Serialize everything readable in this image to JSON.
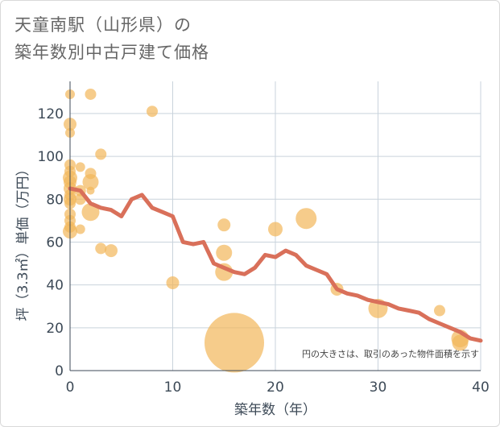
{
  "title_lines": [
    "天童南駅（山形県）の",
    "築年数別中古戸建て価格"
  ],
  "chart_data": {
    "type": "scatter",
    "title": "天童南駅（山形県）の築年数別中古戸建て価格",
    "xlabel": "築年数（年）",
    "ylabel": "坪（3.3㎡）単価（万円）",
    "xlim": [
      0,
      40
    ],
    "ylim": [
      0,
      135
    ],
    "xticks": [
      0,
      10,
      20,
      30,
      40
    ],
    "yticks": [
      0,
      20,
      40,
      60,
      80,
      100,
      120
    ],
    "grid": true,
    "note": "円の大きさは、取引のあった物件面積を示す",
    "colors": {
      "bubble": "#f2b75a",
      "line": "#d9705a"
    },
    "points": [
      {
        "x": 0,
        "y": 129,
        "s": 6
      },
      {
        "x": 0,
        "y": 115,
        "s": 8
      },
      {
        "x": 0,
        "y": 111,
        "s": 6
      },
      {
        "x": 0,
        "y": 96,
        "s": 7
      },
      {
        "x": 0,
        "y": 93,
        "s": 7
      },
      {
        "x": 0,
        "y": 90,
        "s": 9
      },
      {
        "x": 0,
        "y": 88,
        "s": 8
      },
      {
        "x": 0,
        "y": 85,
        "s": 8
      },
      {
        "x": 0,
        "y": 82,
        "s": 7
      },
      {
        "x": 0,
        "y": 80,
        "s": 8
      },
      {
        "x": 0,
        "y": 78,
        "s": 7
      },
      {
        "x": 0,
        "y": 73,
        "s": 7
      },
      {
        "x": 0,
        "y": 70,
        "s": 7
      },
      {
        "x": 0,
        "y": 67,
        "s": 7
      },
      {
        "x": 0,
        "y": 65,
        "s": 9
      },
      {
        "x": 1,
        "y": 95,
        "s": 6
      },
      {
        "x": 1,
        "y": 84,
        "s": 7
      },
      {
        "x": 1,
        "y": 80,
        "s": 7
      },
      {
        "x": 1,
        "y": 66,
        "s": 6
      },
      {
        "x": 2,
        "y": 129,
        "s": 7
      },
      {
        "x": 2,
        "y": 92,
        "s": 7
      },
      {
        "x": 2,
        "y": 88,
        "s": 10
      },
      {
        "x": 2,
        "y": 84,
        "s": 5
      },
      {
        "x": 2,
        "y": 74,
        "s": 11
      },
      {
        "x": 3,
        "y": 101,
        "s": 7
      },
      {
        "x": 3,
        "y": 57,
        "s": 7
      },
      {
        "x": 4,
        "y": 56,
        "s": 8
      },
      {
        "x": 8,
        "y": 121,
        "s": 7
      },
      {
        "x": 10,
        "y": 41,
        "s": 8
      },
      {
        "x": 15,
        "y": 68,
        "s": 8
      },
      {
        "x": 15,
        "y": 55,
        "s": 10
      },
      {
        "x": 15,
        "y": 46,
        "s": 11
      },
      {
        "x": 16,
        "y": 13,
        "s": 37
      },
      {
        "x": 20,
        "y": 66,
        "s": 9
      },
      {
        "x": 23,
        "y": 71,
        "s": 13
      },
      {
        "x": 26,
        "y": 38,
        "s": 8
      },
      {
        "x": 30,
        "y": 29,
        "s": 12
      },
      {
        "x": 36,
        "y": 28,
        "s": 7
      },
      {
        "x": 38,
        "y": 15,
        "s": 11
      },
      {
        "x": 38,
        "y": 13,
        "s": 10
      }
    ],
    "trend": {
      "x": [
        0,
        1,
        2,
        3,
        4,
        5,
        6,
        7,
        8,
        9,
        10,
        11,
        12,
        13,
        14,
        15,
        16,
        17,
        18,
        19,
        20,
        21,
        22,
        23,
        24,
        25,
        26,
        27,
        28,
        29,
        30,
        31,
        32,
        33,
        34,
        35,
        36,
        37,
        38,
        39,
        40
      ],
      "y": [
        85,
        84,
        78,
        76,
        75,
        72,
        80,
        82,
        76,
        74,
        72,
        60,
        59,
        60,
        50,
        48,
        46,
        45,
        48,
        54,
        53,
        56,
        54,
        49,
        47,
        45,
        38,
        36,
        35,
        33,
        32,
        31,
        29,
        28,
        27,
        24,
        22,
        20,
        18,
        15,
        14
      ]
    }
  }
}
